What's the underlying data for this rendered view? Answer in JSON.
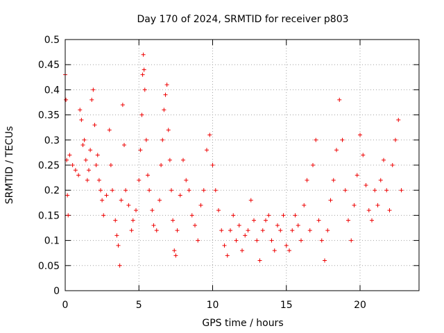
{
  "chart_data": {
    "type": "scatter",
    "title": "Day 170 of 2024, SRMTID for receiver p803",
    "xlabel": "GPS time / hours",
    "ylabel": "SRMTID / TECUs",
    "xlim": [
      0,
      24
    ],
    "ylim": [
      0,
      0.5
    ],
    "xticks": [
      0,
      5,
      10,
      15,
      20
    ],
    "xtick_labels": [
      "0",
      "5",
      "10",
      "15",
      "20"
    ],
    "yticks": [
      0,
      0.05,
      0.1,
      0.15,
      0.2,
      0.25,
      0.3,
      0.35,
      0.4,
      0.45,
      0.5
    ],
    "ytick_labels": [
      "0",
      "0.05",
      "0.1",
      "0.15",
      "0.2",
      "0.25",
      "0.3",
      "0.35",
      "0.4",
      "0.45",
      "0.5"
    ],
    "grid": true,
    "marker": "+",
    "series": [
      {
        "name": "SRMTID p803",
        "color": "#ee0000",
        "points": [
          [
            0.0,
            0.43
          ],
          [
            0.05,
            0.38
          ],
          [
            0.1,
            0.26
          ],
          [
            0.15,
            0.19
          ],
          [
            0.2,
            0.15
          ],
          [
            0.3,
            0.27
          ],
          [
            0.5,
            0.25
          ],
          [
            0.7,
            0.24
          ],
          [
            0.9,
            0.23
          ],
          [
            1.0,
            0.36
          ],
          [
            1.1,
            0.34
          ],
          [
            1.2,
            0.29
          ],
          [
            1.3,
            0.3
          ],
          [
            1.4,
            0.26
          ],
          [
            1.5,
            0.22
          ],
          [
            1.6,
            0.24
          ],
          [
            1.7,
            0.28
          ],
          [
            1.8,
            0.38
          ],
          [
            1.9,
            0.4
          ],
          [
            2.0,
            0.33
          ],
          [
            2.1,
            0.25
          ],
          [
            2.2,
            0.27
          ],
          [
            2.3,
            0.22
          ],
          [
            2.4,
            0.2
          ],
          [
            2.5,
            0.18
          ],
          [
            2.6,
            0.15
          ],
          [
            2.8,
            0.19
          ],
          [
            3.0,
            0.32
          ],
          [
            3.1,
            0.25
          ],
          [
            3.2,
            0.2
          ],
          [
            3.4,
            0.14
          ],
          [
            3.5,
            0.11
          ],
          [
            3.6,
            0.09
          ],
          [
            3.7,
            0.05
          ],
          [
            3.8,
            0.18
          ],
          [
            3.9,
            0.37
          ],
          [
            4.0,
            0.29
          ],
          [
            4.1,
            0.2
          ],
          [
            4.3,
            0.17
          ],
          [
            4.5,
            0.12
          ],
          [
            4.6,
            0.14
          ],
          [
            4.8,
            0.16
          ],
          [
            5.0,
            0.22
          ],
          [
            5.1,
            0.28
          ],
          [
            5.2,
            0.35
          ],
          [
            5.25,
            0.43
          ],
          [
            5.3,
            0.47
          ],
          [
            5.35,
            0.44
          ],
          [
            5.4,
            0.4
          ],
          [
            5.5,
            0.3
          ],
          [
            5.6,
            0.23
          ],
          [
            5.7,
            0.2
          ],
          [
            5.9,
            0.16
          ],
          [
            6.0,
            0.13
          ],
          [
            6.2,
            0.12
          ],
          [
            6.4,
            0.18
          ],
          [
            6.5,
            0.25
          ],
          [
            6.6,
            0.3
          ],
          [
            6.7,
            0.36
          ],
          [
            6.8,
            0.39
          ],
          [
            6.9,
            0.41
          ],
          [
            7.0,
            0.32
          ],
          [
            7.1,
            0.26
          ],
          [
            7.2,
            0.2
          ],
          [
            7.3,
            0.14
          ],
          [
            7.4,
            0.08
          ],
          [
            7.5,
            0.07
          ],
          [
            7.6,
            0.12
          ],
          [
            7.8,
            0.19
          ],
          [
            8.0,
            0.26
          ],
          [
            8.2,
            0.22
          ],
          [
            8.4,
            0.2
          ],
          [
            8.6,
            0.15
          ],
          [
            8.8,
            0.13
          ],
          [
            9.0,
            0.1
          ],
          [
            9.2,
            0.17
          ],
          [
            9.4,
            0.2
          ],
          [
            9.6,
            0.28
          ],
          [
            9.8,
            0.31
          ],
          [
            10.0,
            0.25
          ],
          [
            10.2,
            0.2
          ],
          [
            10.4,
            0.16
          ],
          [
            10.6,
            0.12
          ],
          [
            10.8,
            0.09
          ],
          [
            11.0,
            0.07
          ],
          [
            11.2,
            0.12
          ],
          [
            11.4,
            0.15
          ],
          [
            11.6,
            0.1
          ],
          [
            11.8,
            0.13
          ],
          [
            12.0,
            0.08
          ],
          [
            12.2,
            0.11
          ],
          [
            12.4,
            0.12
          ],
          [
            12.6,
            0.18
          ],
          [
            12.8,
            0.14
          ],
          [
            13.0,
            0.1
          ],
          [
            13.2,
            0.06
          ],
          [
            13.4,
            0.12
          ],
          [
            13.6,
            0.14
          ],
          [
            13.8,
            0.15
          ],
          [
            14.0,
            0.1
          ],
          [
            14.2,
            0.08
          ],
          [
            14.4,
            0.13
          ],
          [
            14.6,
            0.12
          ],
          [
            14.8,
            0.15
          ],
          [
            15.0,
            0.09
          ],
          [
            15.2,
            0.08
          ],
          [
            15.4,
            0.12
          ],
          [
            15.6,
            0.15
          ],
          [
            15.8,
            0.13
          ],
          [
            16.0,
            0.1
          ],
          [
            16.2,
            0.17
          ],
          [
            16.4,
            0.22
          ],
          [
            16.6,
            0.12
          ],
          [
            16.8,
            0.25
          ],
          [
            17.0,
            0.3
          ],
          [
            17.2,
            0.14
          ],
          [
            17.4,
            0.1
          ],
          [
            17.6,
            0.06
          ],
          [
            17.8,
            0.12
          ],
          [
            18.0,
            0.18
          ],
          [
            18.2,
            0.22
          ],
          [
            18.4,
            0.28
          ],
          [
            18.6,
            0.38
          ],
          [
            18.8,
            0.3
          ],
          [
            19.0,
            0.2
          ],
          [
            19.2,
            0.14
          ],
          [
            19.4,
            0.1
          ],
          [
            19.6,
            0.17
          ],
          [
            19.8,
            0.23
          ],
          [
            20.0,
            0.31
          ],
          [
            20.2,
            0.27
          ],
          [
            20.4,
            0.21
          ],
          [
            20.6,
            0.16
          ],
          [
            20.8,
            0.14
          ],
          [
            21.0,
            0.2
          ],
          [
            21.2,
            0.17
          ],
          [
            21.4,
            0.22
          ],
          [
            21.6,
            0.26
          ],
          [
            21.8,
            0.2
          ],
          [
            22.0,
            0.16
          ],
          [
            22.2,
            0.25
          ],
          [
            22.4,
            0.3
          ],
          [
            22.6,
            0.34
          ],
          [
            22.8,
            0.2
          ]
        ]
      }
    ]
  }
}
